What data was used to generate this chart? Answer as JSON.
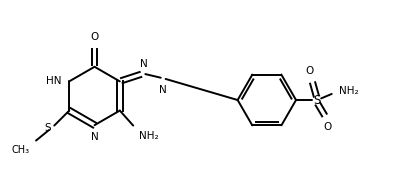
{
  "bg_color": "#ffffff",
  "line_color": "#000000",
  "line_width": 1.4,
  "font_size": 7.5,
  "figsize": [
    4.08,
    1.96
  ],
  "dpi": 100,
  "xlim": [
    0,
    10
  ],
  "ylim": [
    0,
    4.8
  ]
}
